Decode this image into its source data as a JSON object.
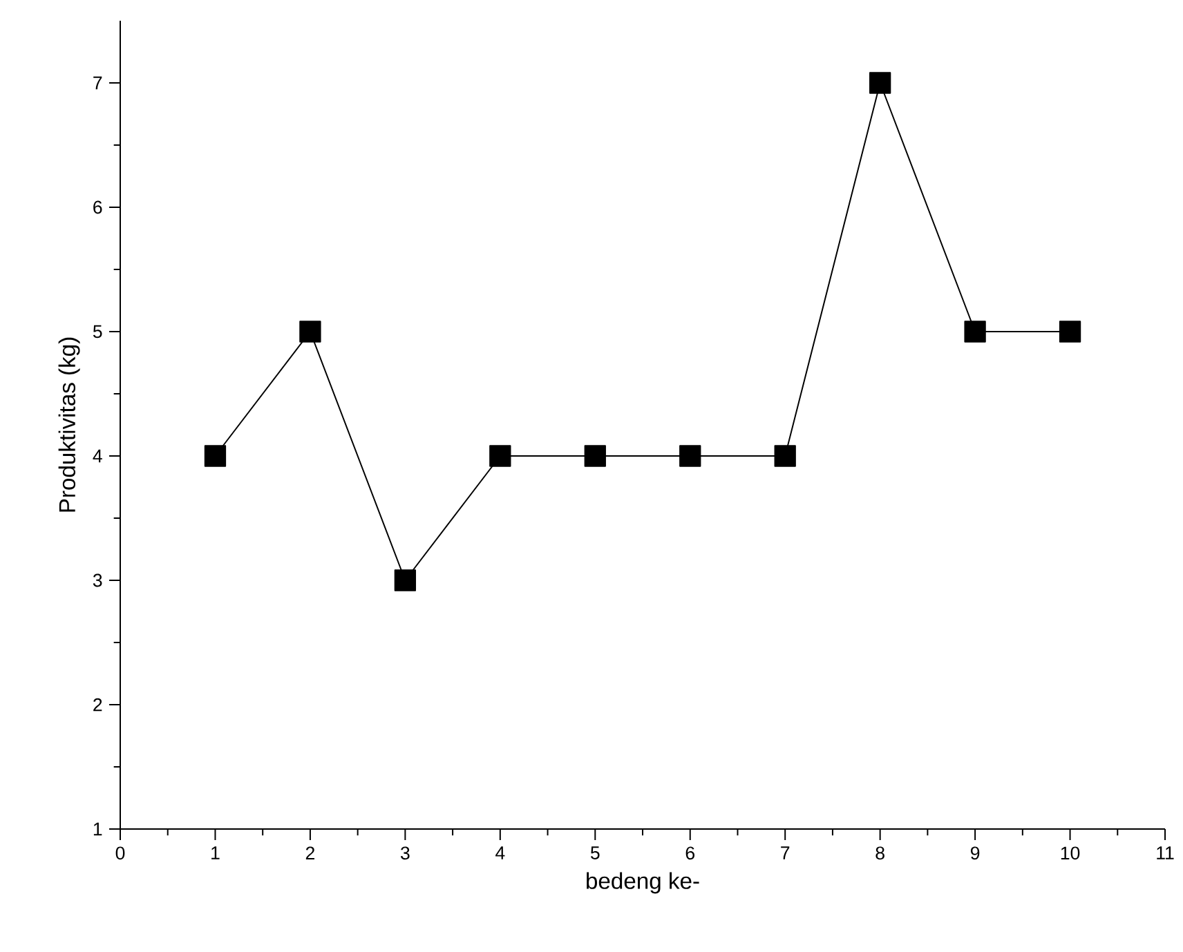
{
  "chart_data": {
    "type": "line",
    "xlabel": "bedeng ke-",
    "ylabel": "Produktivitas (kg)",
    "x": [
      1,
      2,
      3,
      4,
      5,
      6,
      7,
      8,
      9,
      10
    ],
    "series": [
      {
        "color": "#000000",
        "values": [
          4,
          5,
          3,
          4,
          4,
          4,
          4,
          7,
          5,
          5
        ]
      }
    ],
    "xlim": [
      0,
      11
    ],
    "xticks": [
      0,
      1,
      2,
      3,
      4,
      5,
      6,
      7,
      8,
      9,
      10,
      11
    ],
    "ylim": [
      1,
      7.5
    ],
    "yticks": [
      1,
      2,
      3,
      4,
      5,
      6,
      7
    ],
    "marker": "square",
    "line_style": "solid"
  }
}
